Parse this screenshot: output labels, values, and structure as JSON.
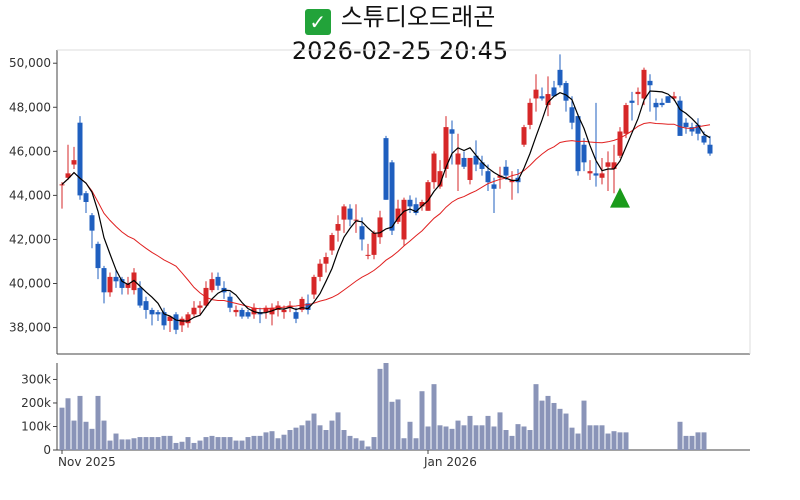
{
  "title": {
    "icon": "check-mark-icon",
    "name": "스튜디오드래곤",
    "datetime": "2026-02-25 20:45"
  },
  "colors": {
    "up": "#d62728",
    "down": "#1f5fbf",
    "ma_short": "#000000",
    "ma_long": "#e02020",
    "volume": "#8a94b8",
    "signal": "#1a9a1a"
  },
  "chart_data": {
    "type": "candlestick",
    "price_axis": {
      "ylim": [
        36800,
        50600
      ],
      "ticks": [
        "38,000",
        "40,000",
        "42,000",
        "44,000",
        "46,000",
        "48,000",
        "50,000"
      ],
      "tick_values": [
        38000,
        40000,
        42000,
        44000,
        46000,
        48000,
        50000
      ]
    },
    "volume_axis": {
      "ylim": [
        0,
        370000
      ],
      "ticks": [
        "0",
        "100k",
        "200k",
        "300k"
      ],
      "tick_values": [
        0,
        100000,
        200000,
        300000
      ]
    },
    "x_ticks": [
      {
        "label": "Nov 2025",
        "index": 0
      },
      {
        "label": "Jan 2026",
        "index": 61
      }
    ],
    "signal_marker": {
      "type": "buy",
      "index": 93,
      "price": 43900
    },
    "candles": [
      [
        44500,
        44600,
        43400,
        44500,
        180000
      ],
      [
        44800,
        46300,
        44700,
        45000,
        220000
      ],
      [
        45400,
        46200,
        45200,
        45600,
        125000
      ],
      [
        47300,
        47600,
        43800,
        44000,
        230000
      ],
      [
        44100,
        44200,
        43200,
        43700,
        120000
      ],
      [
        43100,
        43200,
        41600,
        42400,
        90000
      ],
      [
        41800,
        41900,
        40200,
        40700,
        230000
      ],
      [
        40700,
        40800,
        39100,
        39600,
        125000
      ],
      [
        39600,
        40500,
        39400,
        40300,
        40000
      ],
      [
        40300,
        40600,
        39800,
        40100,
        70000
      ],
      [
        40200,
        40300,
        39500,
        39800,
        45000
      ],
      [
        39800,
        40300,
        39500,
        40000,
        45000
      ],
      [
        39700,
        40700,
        39500,
        40500,
        50000
      ],
      [
        39800,
        40100,
        38900,
        39000,
        55000
      ],
      [
        39200,
        39400,
        38400,
        38800,
        55000
      ],
      [
        38800,
        38900,
        38100,
        38600,
        55000
      ],
      [
        38700,
        38800,
        38300,
        38600,
        55000
      ],
      [
        38700,
        38900,
        37900,
        38100,
        60000
      ],
      [
        38300,
        38400,
        37800,
        38500,
        60000
      ],
      [
        38600,
        38700,
        37700,
        37900,
        30000
      ],
      [
        38100,
        38500,
        37800,
        38400,
        35000
      ],
      [
        38200,
        38700,
        38000,
        38600,
        55000
      ],
      [
        38600,
        39200,
        38500,
        38900,
        30000
      ],
      [
        38900,
        39200,
        38600,
        39000,
        40000
      ],
      [
        39000,
        40100,
        38900,
        39800,
        55000
      ],
      [
        39700,
        40500,
        39600,
        40200,
        60000
      ],
      [
        40300,
        40500,
        39700,
        39900,
        55000
      ],
      [
        39800,
        40100,
        39300,
        39600,
        55000
      ],
      [
        39400,
        39600,
        38700,
        38900,
        55000
      ],
      [
        38700,
        39000,
        38500,
        38800,
        40000
      ],
      [
        38800,
        38900,
        38400,
        38500,
        40000
      ],
      [
        38700,
        38800,
        38400,
        38500,
        55000
      ],
      [
        38600,
        39100,
        38400,
        38900,
        60000
      ],
      [
        38700,
        38900,
        38200,
        38600,
        60000
      ],
      [
        38700,
        39000,
        38400,
        38900,
        75000
      ],
      [
        38600,
        39100,
        38100,
        38900,
        80000
      ],
      [
        38800,
        39200,
        38500,
        39000,
        50000
      ],
      [
        38700,
        39000,
        38400,
        38800,
        65000
      ],
      [
        38900,
        39200,
        38700,
        39000,
        85000
      ],
      [
        38700,
        38900,
        38200,
        38400,
        95000
      ],
      [
        38800,
        39400,
        38700,
        39300,
        105000
      ],
      [
        39100,
        39500,
        38600,
        38800,
        125000
      ],
      [
        39500,
        40400,
        39300,
        40300,
        155000
      ],
      [
        40300,
        41100,
        40100,
        40900,
        105000
      ],
      [
        40900,
        41400,
        40500,
        41200,
        85000
      ],
      [
        41500,
        42300,
        41300,
        42200,
        125000
      ],
      [
        42400,
        43100,
        41900,
        42700,
        160000
      ],
      [
        42900,
        43600,
        42300,
        43500,
        85000
      ],
      [
        43400,
        43600,
        42600,
        42900,
        60000
      ],
      [
        42900,
        43600,
        42300,
        42900,
        50000
      ],
      [
        42600,
        43000,
        41500,
        42000,
        40000
      ],
      [
        41300,
        41800,
        41100,
        41300,
        15000
      ],
      [
        41300,
        42400,
        41100,
        42300,
        55000
      ],
      [
        42100,
        43300,
        41800,
        43000,
        345000
      ],
      [
        46600,
        46700,
        43800,
        43800,
        370000
      ],
      [
        45500,
        45600,
        42200,
        42400,
        205000
      ],
      [
        42800,
        43800,
        42700,
        43400,
        215000
      ],
      [
        42000,
        43900,
        41700,
        43800,
        50000
      ],
      [
        43800,
        44000,
        43200,
        43500,
        120000
      ],
      [
        43600,
        43900,
        43100,
        43200,
        50000
      ],
      [
        43500,
        43800,
        43300,
        43700,
        250000
      ],
      [
        43300,
        44700,
        43300,
        44600,
        100000
      ],
      [
        44600,
        46000,
        44300,
        45900,
        280000
      ],
      [
        44400,
        45600,
        44300,
        45100,
        105000
      ],
      [
        45200,
        47600,
        44800,
        47100,
        100000
      ],
      [
        47000,
        47400,
        45400,
        46800,
        90000
      ],
      [
        45400,
        46800,
        44200,
        45900,
        125000
      ],
      [
        45700,
        46000,
        45200,
        45300,
        105000
      ],
      [
        44700,
        45700,
        44500,
        45700,
        145000
      ],
      [
        45800,
        46500,
        45100,
        45400,
        105000
      ],
      [
        45500,
        45800,
        44900,
        45200,
        105000
      ],
      [
        45100,
        45400,
        44200,
        44600,
        145000
      ],
      [
        44500,
        44800,
        43200,
        44300,
        100000
      ],
      [
        44800,
        45300,
        44300,
        44900,
        160000
      ],
      [
        45300,
        45600,
        44700,
        44900,
        85000
      ],
      [
        44600,
        45100,
        43800,
        44700,
        60000
      ],
      [
        44800,
        45200,
        44100,
        44600,
        110000
      ],
      [
        46300,
        47200,
        46200,
        47100,
        100000
      ],
      [
        47200,
        48400,
        47000,
        48200,
        85000
      ],
      [
        48400,
        49500,
        47800,
        48800,
        280000
      ],
      [
        48500,
        48900,
        48300,
        48400,
        210000
      ],
      [
        48100,
        49400,
        47600,
        48600,
        230000
      ],
      [
        48900,
        49200,
        48600,
        48500,
        200000
      ],
      [
        49700,
        50400,
        48900,
        49000,
        175000
      ],
      [
        49100,
        49200,
        47800,
        48300,
        155000
      ],
      [
        48000,
        48500,
        47000,
        47300,
        95000
      ],
      [
        47600,
        47700,
        44900,
        45100,
        70000
      ],
      [
        46300,
        46600,
        45100,
        45500,
        210000
      ],
      [
        45000,
        45600,
        44700,
        45100,
        105000
      ],
      [
        45000,
        48200,
        44400,
        44900,
        105000
      ],
      [
        44800,
        45700,
        44500,
        45000,
        105000
      ],
      [
        45300,
        46000,
        44200,
        45500,
        70000
      ],
      [
        45200,
        46300,
        44100,
        45500,
        80000
      ],
      [
        45800,
        47100,
        45700,
        46900,
        75000
      ],
      [
        46800,
        48200,
        46600,
        48100,
        75000
      ],
      [
        48300,
        48700,
        47400,
        48200,
        0
      ],
      [
        48600,
        48900,
        48100,
        48700,
        0
      ],
      [
        48400,
        49800,
        48100,
        49700,
        0
      ],
      [
        49200,
        49500,
        47800,
        49000,
        0
      ],
      [
        48200,
        48400,
        47400,
        48000,
        0
      ],
      [
        48200,
        48400,
        48000,
        48100,
        0
      ],
      [
        48500,
        48500,
        48200,
        48200,
        0
      ],
      [
        48400,
        48700,
        48300,
        48500,
        0
      ],
      [
        48300,
        48500,
        46800,
        46700,
        120000
      ],
      [
        47300,
        47500,
        46800,
        47100,
        60000
      ],
      [
        47100,
        47300,
        46700,
        46900,
        60000
      ],
      [
        47200,
        47500,
        46500,
        46800,
        75000
      ],
      [
        46700,
        46900,
        46300,
        46400,
        75000
      ],
      [
        46300,
        46700,
        45800,
        45900,
        0
      ]
    ]
  }
}
